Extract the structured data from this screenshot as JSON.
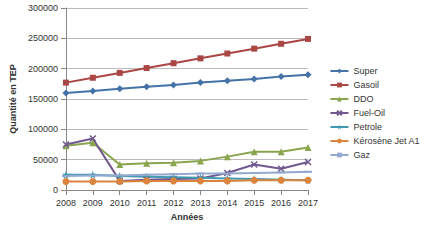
{
  "chart_data": {
    "type": "line",
    "x_label": "Années",
    "y_label": "Quantité en TEP",
    "categories": [
      "2008",
      "2009",
      "2010",
      "2011",
      "2012",
      "2013",
      "2014",
      "2015",
      "2016",
      "2017"
    ],
    "ylim": [
      0,
      300000
    ],
    "yticks": [
      0,
      50000,
      100000,
      150000,
      200000,
      250000,
      300000
    ],
    "grid": true,
    "legend": "right",
    "series": [
      {
        "name": "Super",
        "color": "#4572A7",
        "marker": "diamond",
        "values": [
          160000,
          163000,
          167000,
          170000,
          173000,
          177000,
          180000,
          183000,
          187000,
          190000
        ]
      },
      {
        "name": "Gasoil",
        "color": "#AA4643",
        "marker": "square",
        "values": [
          177000,
          185000,
          193000,
          201000,
          209000,
          217000,
          225000,
          233000,
          241000,
          249000
        ]
      },
      {
        "name": "DDO",
        "color": "#89A54E",
        "marker": "triangle",
        "values": [
          73000,
          78000,
          42000,
          44000,
          45000,
          48000,
          55000,
          63000,
          63000,
          70000
        ]
      },
      {
        "name": "Fuel-Oil",
        "color": "#71588F",
        "marker": "x",
        "values": [
          75000,
          85000,
          15000,
          17000,
          18000,
          19000,
          28000,
          42000,
          35000,
          46000
        ]
      },
      {
        "name": "Petrole",
        "color": "#4198AF",
        "marker": "star",
        "values": [
          25000,
          25000,
          23000,
          22000,
          21000,
          20000,
          19000,
          18000,
          17000,
          16000
        ]
      },
      {
        "name": "Kérosène Jet A1",
        "color": "#DB843D",
        "marker": "circle",
        "values": [
          14000,
          14000,
          14000,
          15000,
          15000,
          15000,
          15000,
          16000,
          16000,
          16000
        ]
      },
      {
        "name": "Gaz",
        "color": "#93A9CF",
        "marker": "dash",
        "values": [
          23000,
          24000,
          24000,
          25000,
          26000,
          27000,
          27000,
          28000,
          29000,
          30000
        ]
      }
    ]
  }
}
